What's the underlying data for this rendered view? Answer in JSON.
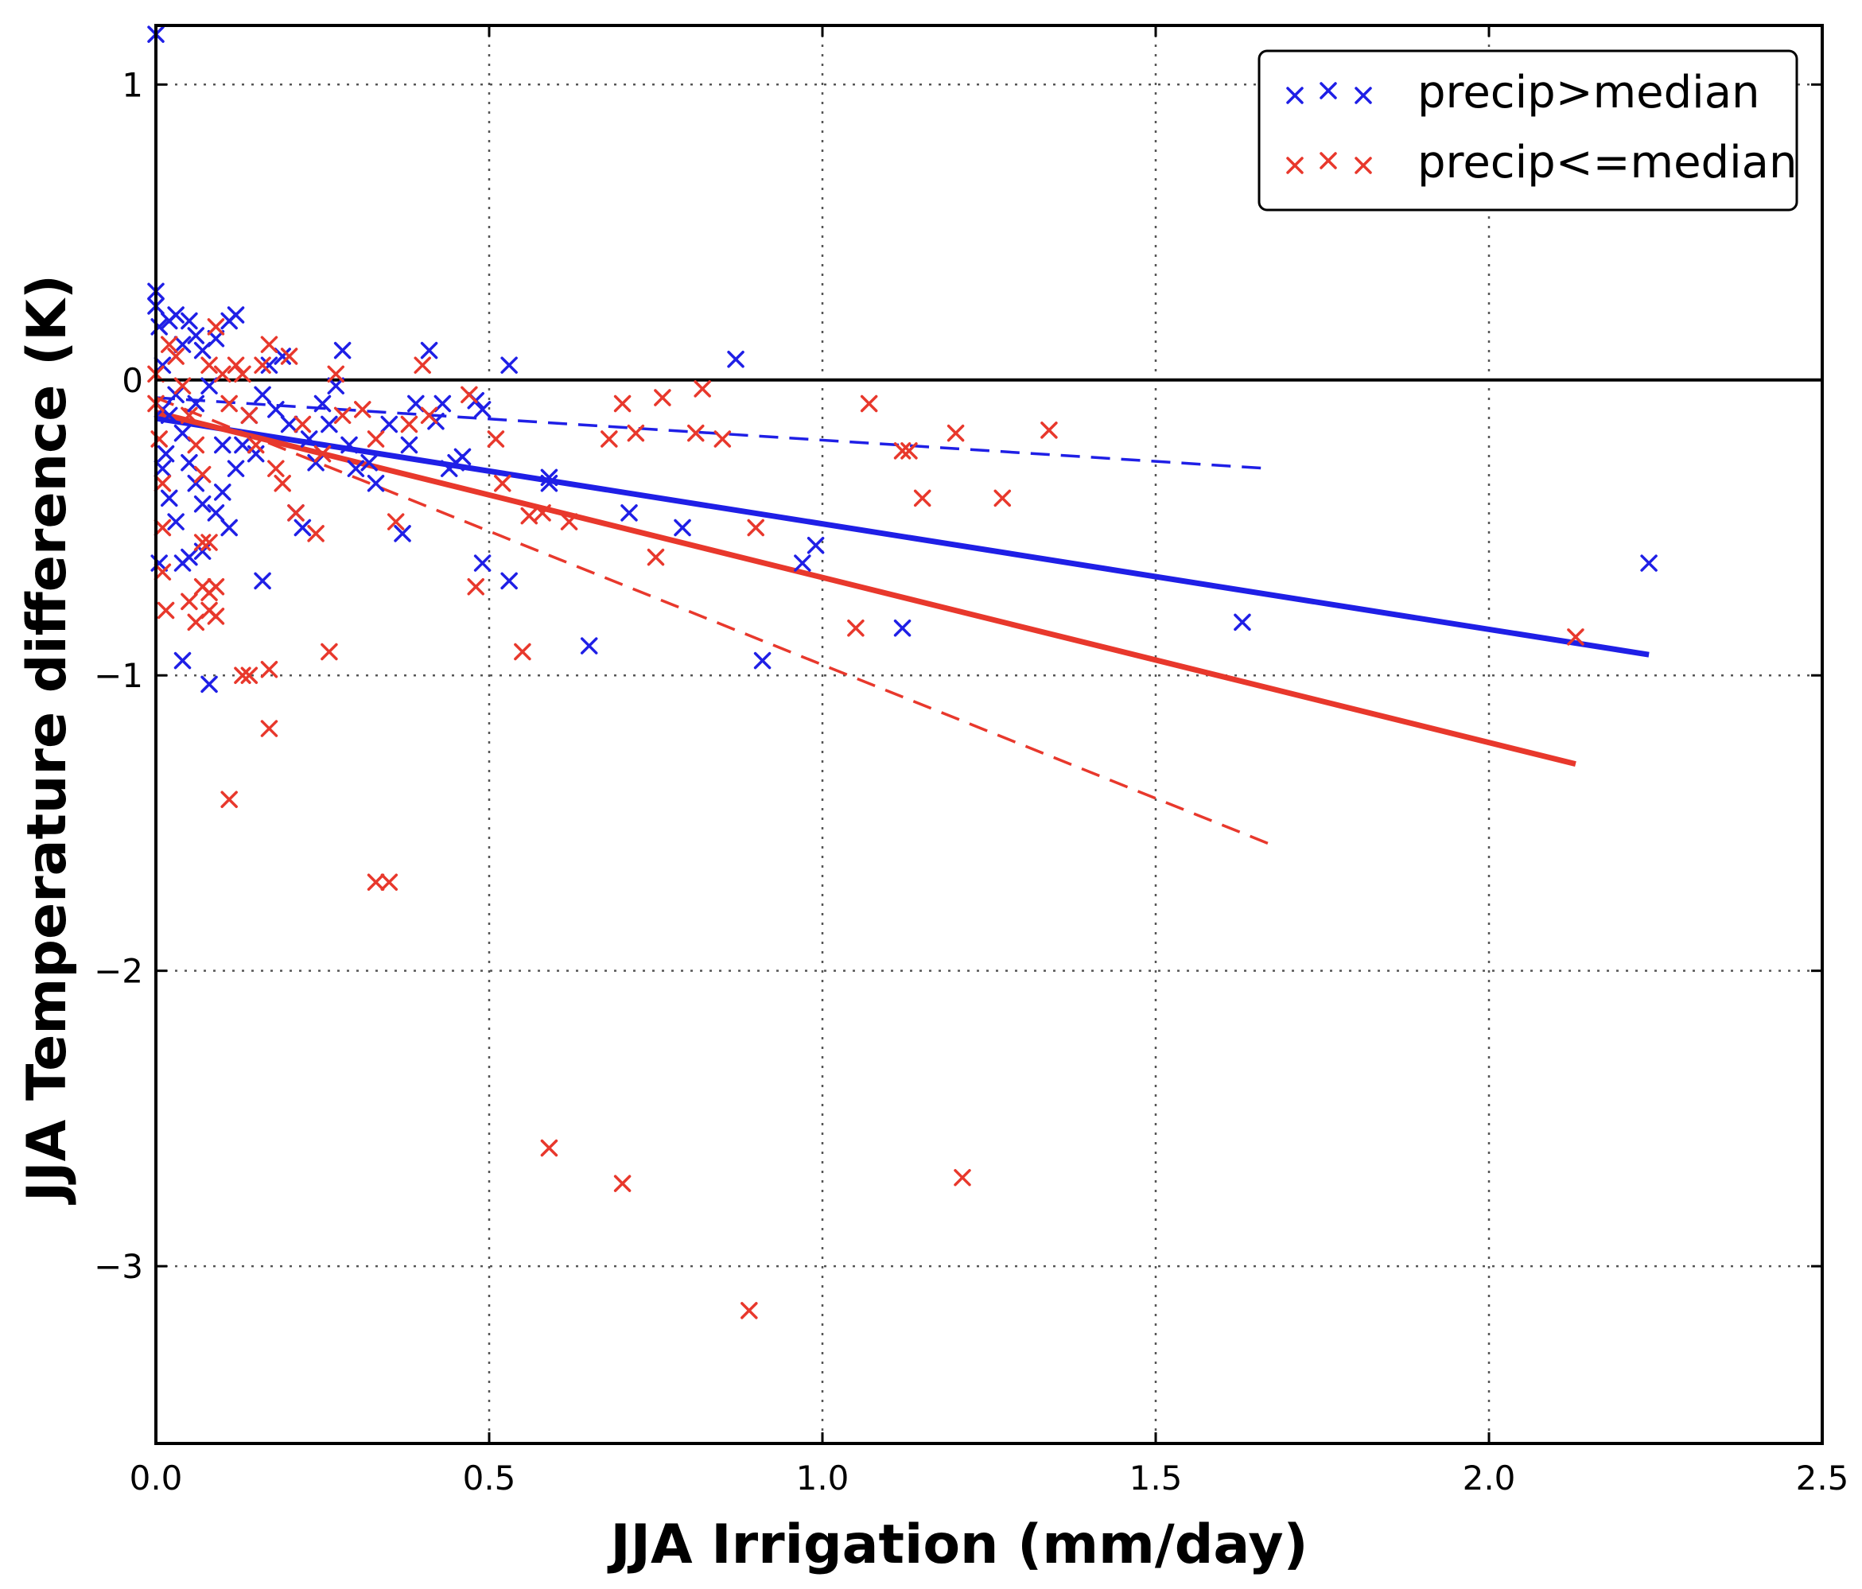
{
  "chart_data": {
    "type": "scatter",
    "xlabel": "JJA Irrigation (mm/day)",
    "ylabel": "JJA Temperature difference (K)",
    "xlim": [
      0.0,
      2.5
    ],
    "ylim": [
      -3.6,
      1.2
    ],
    "xticks": [
      0.0,
      0.5,
      1.0,
      1.5,
      2.0,
      2.5
    ],
    "xtick_labels": [
      "0.0",
      "0.5",
      "1.0",
      "1.5",
      "2.0",
      "2.5"
    ],
    "yticks": [
      -3,
      -2,
      -1,
      0,
      1
    ],
    "ytick_labels": [
      "−3",
      "−2",
      "−1",
      "0",
      "1"
    ],
    "grid": true,
    "zero_line": 0,
    "legend_position": "top-right",
    "colors": {
      "wet": "#1f1fe6",
      "dry": "#e8382c",
      "axis": "#000000",
      "grid": "#555555"
    },
    "series": [
      {
        "name": "precip>median",
        "color": "#1f1fe6",
        "marker": "x",
        "points": [
          [
            0.0,
            1.17
          ],
          [
            0.0,
            0.3
          ],
          [
            0.0,
            0.25
          ],
          [
            0.005,
            0.18
          ],
          [
            0.01,
            0.05
          ],
          [
            0.01,
            -0.1
          ],
          [
            0.015,
            -0.25
          ],
          [
            0.02,
            -0.4
          ],
          [
            0.005,
            -0.62
          ],
          [
            0.02,
            0.2
          ],
          [
            0.03,
            0.22
          ],
          [
            0.04,
            0.12
          ],
          [
            0.05,
            0.2
          ],
          [
            0.06,
            0.15
          ],
          [
            0.07,
            0.1
          ],
          [
            0.09,
            0.14
          ],
          [
            0.11,
            0.2
          ],
          [
            0.12,
            0.22
          ],
          [
            0.03,
            -0.05
          ],
          [
            0.04,
            -0.18
          ],
          [
            0.05,
            -0.28
          ],
          [
            0.06,
            -0.35
          ],
          [
            0.07,
            -0.42
          ],
          [
            0.03,
            -0.48
          ],
          [
            0.05,
            -0.6
          ],
          [
            0.07,
            -0.58
          ],
          [
            0.09,
            -0.45
          ],
          [
            0.1,
            -0.38
          ],
          [
            0.11,
            -0.5
          ],
          [
            0.12,
            -0.3
          ],
          [
            0.13,
            -0.22
          ],
          [
            0.14,
            -0.12
          ],
          [
            0.15,
            -0.25
          ],
          [
            0.16,
            -0.05
          ],
          [
            0.17,
            0.05
          ],
          [
            0.18,
            -0.1
          ],
          [
            0.19,
            0.08
          ],
          [
            0.2,
            -0.15
          ],
          [
            0.21,
            -0.45
          ],
          [
            0.22,
            -0.5
          ],
          [
            0.23,
            -0.2
          ],
          [
            0.24,
            -0.28
          ],
          [
            0.25,
            -0.08
          ],
          [
            0.26,
            -0.15
          ],
          [
            0.27,
            -0.02
          ],
          [
            0.28,
            0.1
          ],
          [
            0.29,
            -0.22
          ],
          [
            0.3,
            -0.3
          ],
          [
            0.32,
            -0.28
          ],
          [
            0.33,
            -0.35
          ],
          [
            0.35,
            -0.15
          ],
          [
            0.37,
            -0.52
          ],
          [
            0.38,
            -0.22
          ],
          [
            0.39,
            -0.08
          ],
          [
            0.41,
            0.1
          ],
          [
            0.42,
            -0.14
          ],
          [
            0.43,
            -0.08
          ],
          [
            0.44,
            -0.3
          ],
          [
            0.45,
            -0.28
          ],
          [
            0.46,
            -0.26
          ],
          [
            0.48,
            -0.07
          ],
          [
            0.49,
            -0.1
          ],
          [
            0.49,
            -0.62
          ],
          [
            0.53,
            0.05
          ],
          [
            0.53,
            -0.68
          ],
          [
            0.59,
            -0.33
          ],
          [
            0.59,
            -0.35
          ],
          [
            0.65,
            -0.9
          ],
          [
            0.71,
            -0.45
          ],
          [
            0.79,
            -0.5
          ],
          [
            0.87,
            0.07
          ],
          [
            0.91,
            -0.95
          ],
          [
            0.97,
            -0.62
          ],
          [
            0.99,
            -0.56
          ],
          [
            1.12,
            -0.84
          ],
          [
            1.63,
            -0.82
          ],
          [
            2.24,
            -0.62
          ],
          [
            0.04,
            -0.62
          ],
          [
            0.04,
            -0.95
          ],
          [
            0.08,
            -1.03
          ],
          [
            0.16,
            -0.68
          ],
          [
            0.01,
            -0.3
          ],
          [
            0.02,
            -0.12
          ],
          [
            0.08,
            -0.02
          ],
          [
            0.1,
            -0.22
          ],
          [
            0.06,
            -0.08
          ]
        ]
      },
      {
        "name": "precip<=median",
        "color": "#e8382c",
        "marker": "x",
        "points": [
          [
            0.0,
            0.02
          ],
          [
            0.0,
            -0.08
          ],
          [
            0.005,
            -0.2
          ],
          [
            0.01,
            -0.35
          ],
          [
            0.01,
            -0.5
          ],
          [
            0.01,
            -0.65
          ],
          [
            0.015,
            -0.78
          ],
          [
            0.02,
            0.12
          ],
          [
            0.03,
            0.08
          ],
          [
            0.04,
            -0.02
          ],
          [
            0.05,
            -0.12
          ],
          [
            0.06,
            -0.22
          ],
          [
            0.07,
            -0.32
          ],
          [
            0.08,
            0.05
          ],
          [
            0.09,
            0.18
          ],
          [
            0.1,
            0.02
          ],
          [
            0.11,
            -0.08
          ],
          [
            0.12,
            0.05
          ],
          [
            0.05,
            -0.75
          ],
          [
            0.06,
            -0.82
          ],
          [
            0.07,
            -0.7
          ],
          [
            0.08,
            -0.72
          ],
          [
            0.09,
            -0.7
          ],
          [
            0.08,
            -0.78
          ],
          [
            0.09,
            -0.8
          ],
          [
            0.07,
            -0.55
          ],
          [
            0.08,
            -0.55
          ],
          [
            0.13,
            0.02
          ],
          [
            0.14,
            -0.12
          ],
          [
            0.15,
            -0.22
          ],
          [
            0.16,
            0.05
          ],
          [
            0.17,
            0.12
          ],
          [
            0.18,
            -0.3
          ],
          [
            0.19,
            -0.35
          ],
          [
            0.2,
            0.08
          ],
          [
            0.21,
            -0.45
          ],
          [
            0.13,
            -1.0
          ],
          [
            0.14,
            -1.0
          ],
          [
            0.17,
            -0.98
          ],
          [
            0.17,
            -1.18
          ],
          [
            0.11,
            -1.42
          ],
          [
            0.26,
            -0.92
          ],
          [
            0.22,
            -0.15
          ],
          [
            0.24,
            -0.52
          ],
          [
            0.25,
            -0.25
          ],
          [
            0.27,
            0.02
          ],
          [
            0.28,
            -0.12
          ],
          [
            0.31,
            -0.1
          ],
          [
            0.33,
            -0.2
          ],
          [
            0.36,
            -0.48
          ],
          [
            0.38,
            -0.15
          ],
          [
            0.4,
            0.05
          ],
          [
            0.41,
            -0.12
          ],
          [
            0.47,
            -0.05
          ],
          [
            0.48,
            -0.7
          ],
          [
            0.51,
            -0.2
          ],
          [
            0.52,
            -0.35
          ],
          [
            0.55,
            -0.92
          ],
          [
            0.56,
            -0.46
          ],
          [
            0.58,
            -0.45
          ],
          [
            0.33,
            -1.7
          ],
          [
            0.35,
            -1.7
          ],
          [
            0.62,
            -0.48
          ],
          [
            0.68,
            -0.2
          ],
          [
            0.7,
            -0.08
          ],
          [
            0.72,
            -0.18
          ],
          [
            0.75,
            -0.6
          ],
          [
            0.76,
            -0.06
          ],
          [
            0.81,
            -0.18
          ],
          [
            0.82,
            -0.03
          ],
          [
            0.85,
            -0.2
          ],
          [
            0.9,
            -0.5
          ],
          [
            1.05,
            -0.84
          ],
          [
            1.07,
            -0.08
          ],
          [
            1.12,
            -0.24
          ],
          [
            1.13,
            -0.24
          ],
          [
            1.15,
            -0.4
          ],
          [
            1.2,
            -0.18
          ],
          [
            1.27,
            -0.4
          ],
          [
            1.34,
            -0.17
          ],
          [
            2.13,
            -0.87
          ],
          [
            0.59,
            -2.6
          ],
          [
            0.7,
            -2.72
          ],
          [
            1.21,
            -2.7
          ],
          [
            0.89,
            -3.15
          ]
        ]
      }
    ],
    "fit_lines": [
      {
        "series": "precip>median",
        "style": "solid",
        "x": [
          0.0,
          2.24
        ],
        "y": [
          -0.13,
          -0.93
        ]
      },
      {
        "series": "precip<=median",
        "style": "solid",
        "x": [
          0.0,
          2.13
        ],
        "y": [
          -0.11,
          -1.3
        ]
      },
      {
        "series": "precip>median",
        "style": "dashed",
        "x": [
          0.0,
          1.67
        ],
        "y": [
          -0.06,
          -0.3
        ]
      },
      {
        "series": "precip<=median",
        "style": "dashed",
        "x": [
          0.0,
          1.67
        ],
        "y": [
          -0.06,
          -1.57
        ]
      }
    ]
  }
}
